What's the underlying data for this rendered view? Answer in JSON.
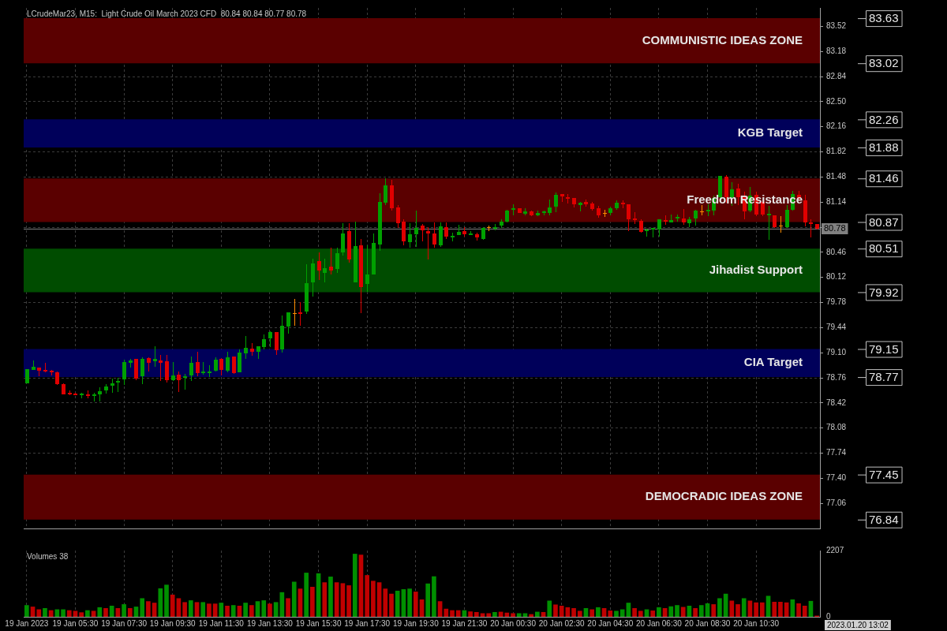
{
  "chart_data": [
    {
      "type": "candlestick",
      "title": "LCrudeMar23, M15:  Light Crude Oil March 2023 CFD  80.84 80.84 80.77 80.78",
      "categories": [
        null,
        null,
        null,
        null,
        null,
        null,
        null,
        null,
        null,
        null,
        null,
        null,
        null,
        null,
        null,
        null,
        null,
        null,
        null,
        null,
        null,
        null,
        null,
        null,
        null,
        null,
        null,
        null,
        null,
        null,
        null,
        null,
        null,
        null,
        null,
        null,
        null,
        null,
        null,
        null,
        null,
        null,
        null,
        null,
        null,
        null,
        null,
        null,
        null,
        null,
        null,
        null,
        null,
        null,
        null,
        null,
        null,
        null,
        null,
        null,
        null,
        null,
        null,
        null,
        null,
        null,
        null,
        null,
        null,
        null,
        null,
        null,
        null,
        null,
        null,
        null,
        null,
        null,
        null,
        null,
        null,
        null,
        null,
        null,
        null,
        null,
        null,
        null,
        null,
        null,
        null,
        null,
        null,
        null,
        null,
        null,
        null,
        null,
        null,
        null,
        null,
        null,
        null,
        null,
        null,
        null,
        null,
        null,
        null,
        null,
        null,
        null,
        null,
        null,
        null,
        null,
        null,
        null,
        null,
        null,
        null,
        null,
        null,
        null,
        null,
        null,
        null,
        null,
        null,
        null,
        null
      ],
      "ohlc": [
        [
          78.69,
          78.88,
          78.69,
          78.88
        ],
        [
          78.87,
          79.0,
          78.87,
          78.91
        ],
        [
          78.9,
          78.9,
          78.78,
          78.86
        ],
        [
          78.86,
          78.96,
          78.83,
          78.85
        ],
        [
          78.86,
          78.87,
          78.79,
          78.84
        ],
        [
          78.84,
          78.85,
          78.66,
          78.68
        ],
        [
          78.67,
          78.69,
          78.54,
          78.54
        ],
        [
          78.55,
          78.59,
          78.53,
          78.54
        ],
        [
          78.55,
          78.56,
          78.52,
          78.52
        ],
        [
          78.52,
          78.56,
          78.48,
          78.55
        ],
        [
          78.54,
          78.59,
          78.48,
          78.51
        ],
        [
          78.51,
          78.56,
          78.44,
          78.54
        ],
        [
          78.54,
          78.63,
          78.44,
          78.58
        ],
        [
          78.59,
          78.68,
          78.55,
          78.64
        ],
        [
          78.65,
          78.75,
          78.56,
          78.69
        ],
        [
          78.7,
          78.76,
          78.57,
          78.71
        ],
        [
          78.74,
          79.01,
          78.66,
          78.97
        ],
        [
          78.96,
          79.02,
          78.9,
          79.0
        ],
        [
          79.02,
          79.02,
          78.73,
          78.75
        ],
        [
          78.78,
          79.04,
          78.68,
          79.02
        ],
        [
          79.03,
          79.04,
          78.85,
          78.96
        ],
        [
          78.98,
          79.19,
          78.91,
          79.02
        ],
        [
          79.0,
          79.07,
          78.72,
          78.96
        ],
        [
          78.98,
          79.07,
          78.7,
          78.73
        ],
        [
          78.73,
          78.97,
          78.72,
          78.79
        ],
        [
          78.8,
          78.85,
          78.57,
          78.73
        ],
        [
          78.77,
          78.81,
          78.6,
          78.78
        ],
        [
          78.79,
          79.05,
          78.72,
          78.96
        ],
        [
          78.97,
          79.11,
          78.78,
          78.82
        ],
        [
          78.83,
          78.97,
          78.8,
          78.84
        ],
        [
          78.82,
          78.93,
          78.77,
          78.85
        ],
        [
          78.86,
          79.04,
          78.85,
          79.01
        ],
        [
          79.02,
          79.03,
          78.79,
          78.87
        ],
        [
          78.86,
          79.11,
          78.84,
          79.04
        ],
        [
          79.05,
          79.05,
          78.81,
          78.82
        ],
        [
          78.83,
          79.14,
          78.83,
          79.1
        ],
        [
          79.09,
          79.33,
          79.02,
          79.17
        ],
        [
          79.16,
          79.23,
          79.06,
          79.11
        ],
        [
          79.11,
          79.19,
          79.02,
          79.19
        ],
        [
          79.18,
          79.35,
          79.14,
          79.28
        ],
        [
          79.29,
          79.39,
          79.18,
          79.38
        ],
        [
          79.38,
          79.38,
          79.07,
          79.13
        ],
        [
          79.14,
          79.6,
          79.1,
          79.46
        ],
        [
          79.45,
          79.65,
          79.36,
          79.65
        ],
        [
          79.63,
          79.83,
          79.46,
          79.63
        ],
        [
          79.64,
          79.79,
          79.46,
          79.63
        ],
        [
          79.66,
          80.3,
          79.63,
          80.04
        ],
        [
          80.05,
          80.37,
          79.86,
          80.31
        ],
        [
          80.34,
          80.46,
          80.09,
          80.21
        ],
        [
          80.18,
          80.37,
          80.05,
          80.25
        ],
        [
          80.27,
          80.52,
          80.16,
          80.21
        ],
        [
          80.23,
          80.52,
          80.18,
          80.45
        ],
        [
          80.46,
          80.85,
          80.42,
          80.72
        ],
        [
          80.75,
          80.85,
          80.32,
          80.36
        ],
        [
          80.05,
          80.87,
          80.05,
          80.54
        ],
        [
          80.55,
          80.64,
          79.64,
          79.99
        ],
        [
          80.03,
          80.55,
          79.92,
          80.16
        ],
        [
          80.16,
          80.71,
          80.16,
          80.59
        ],
        [
          80.57,
          81.26,
          80.48,
          81.14
        ],
        [
          81.13,
          81.46,
          81.1,
          81.37
        ],
        [
          81.37,
          81.44,
          81.02,
          81.06
        ],
        [
          81.07,
          81.1,
          80.79,
          80.85
        ],
        [
          80.87,
          80.91,
          80.56,
          80.61
        ],
        [
          80.6,
          80.85,
          80.52,
          80.7
        ],
        [
          80.7,
          81.02,
          80.53,
          80.79
        ],
        [
          80.82,
          80.84,
          80.61,
          80.76
        ],
        [
          80.75,
          80.8,
          80.36,
          80.71
        ],
        [
          80.72,
          80.86,
          80.52,
          80.57
        ],
        [
          80.56,
          80.86,
          80.53,
          80.81
        ],
        [
          80.8,
          80.86,
          80.64,
          80.67
        ],
        [
          80.66,
          80.73,
          80.61,
          80.68
        ],
        [
          80.69,
          80.83,
          80.69,
          80.74
        ],
        [
          80.75,
          80.8,
          80.67,
          80.7
        ],
        [
          80.69,
          80.75,
          80.69,
          80.71
        ],
        [
          80.7,
          80.73,
          80.62,
          80.66
        ],
        [
          80.64,
          80.8,
          80.63,
          80.79
        ],
        [
          80.79,
          80.82,
          80.75,
          80.79
        ],
        [
          80.78,
          80.84,
          80.76,
          80.8
        ],
        [
          80.82,
          80.91,
          80.79,
          80.88
        ],
        [
          80.87,
          81.04,
          80.86,
          81.03
        ],
        [
          81.04,
          81.11,
          80.96,
          81.05
        ],
        [
          81.06,
          81.06,
          80.99,
          80.99
        ],
        [
          80.98,
          81.06,
          80.96,
          81.01
        ],
        [
          81.01,
          81.02,
          80.95,
          80.96
        ],
        [
          80.96,
          81.02,
          80.95,
          80.99
        ],
        [
          81.0,
          81.02,
          80.96,
          81.01
        ],
        [
          80.99,
          81.17,
          80.96,
          81.07
        ],
        [
          81.08,
          81.27,
          81.0,
          81.24
        ],
        [
          81.25,
          81.25,
          81.14,
          81.22
        ],
        [
          81.21,
          81.25,
          81.12,
          81.19
        ],
        [
          81.2,
          81.2,
          81.07,
          81.11
        ],
        [
          81.1,
          81.14,
          81.01,
          81.13
        ],
        [
          81.14,
          81.17,
          81.08,
          81.11
        ],
        [
          81.12,
          81.14,
          81.03,
          81.05
        ],
        [
          81.06,
          81.09,
          80.93,
          80.96
        ],
        [
          80.99,
          81.04,
          80.94,
          80.99
        ],
        [
          80.99,
          81.08,
          80.96,
          81.06
        ],
        [
          81.06,
          81.16,
          81.04,
          81.13
        ],
        [
          81.13,
          81.16,
          81.06,
          81.11
        ],
        [
          81.11,
          81.11,
          80.75,
          80.91
        ],
        [
          80.92,
          81.0,
          80.84,
          80.9
        ],
        [
          80.89,
          80.91,
          80.73,
          80.74
        ],
        [
          80.75,
          80.78,
          80.67,
          80.76
        ],
        [
          80.77,
          80.79,
          80.66,
          80.78
        ],
        [
          80.77,
          80.91,
          80.67,
          80.91
        ],
        [
          80.9,
          80.96,
          80.83,
          80.87
        ],
        [
          80.86,
          80.97,
          80.86,
          80.9
        ],
        [
          80.92,
          80.97,
          80.88,
          80.93
        ],
        [
          80.92,
          81.05,
          80.83,
          80.86
        ],
        [
          80.85,
          80.94,
          80.8,
          80.91
        ],
        [
          80.92,
          81.04,
          80.82,
          81.02
        ],
        [
          81.01,
          81.1,
          80.96,
          81.01
        ],
        [
          81.02,
          81.11,
          80.95,
          81.03
        ],
        [
          81.03,
          81.23,
          80.96,
          81.2
        ],
        [
          81.21,
          81.5,
          81.17,
          81.49
        ],
        [
          81.48,
          81.51,
          81.13,
          81.21
        ],
        [
          81.21,
          81.41,
          81.09,
          81.31
        ],
        [
          81.32,
          81.39,
          81.1,
          81.21
        ],
        [
          81.22,
          81.28,
          80.91,
          81.01
        ],
        [
          81.02,
          81.34,
          81.0,
          81.23
        ],
        [
          81.24,
          81.28,
          80.95,
          80.97
        ],
        [
          81.14,
          81.16,
          80.95,
          80.97
        ],
        [
          80.97,
          81.09,
          80.63,
          80.98
        ],
        [
          80.96,
          80.96,
          80.79,
          80.8
        ],
        [
          80.82,
          80.95,
          80.73,
          80.82
        ],
        [
          80.8,
          81.1,
          80.79,
          81.04
        ],
        [
          81.04,
          81.29,
          81.02,
          81.25
        ],
        [
          81.24,
          81.29,
          81.16,
          81.18
        ],
        [
          81.16,
          81.24,
          80.81,
          80.86
        ],
        [
          80.86,
          80.91,
          80.66,
          80.84
        ],
        [
          80.84,
          80.84,
          80.77,
          80.78
        ]
      ],
      "colors": [
        "#00a000",
        "#00a000",
        "#e00000",
        "#e00000",
        "#e00000",
        "#e00000",
        "#e00000",
        "#e00000",
        "#e00000",
        "#00a000",
        "#e00000",
        "#00a000",
        "#00a000",
        "#00a000",
        "#00a000",
        "#00a000",
        "#00a000",
        "#00a000",
        "#e00000",
        "#00a000",
        "#e00000",
        "#00a000",
        "#e00000",
        "#e00000",
        "#00a000",
        "#e00000",
        "#00a000",
        "#00a000",
        "#e00000",
        "#00a000",
        "#00a000",
        "#00a000",
        "#e00000",
        "#00a000",
        "#e00000",
        "#00a000",
        "#00a000",
        "#e00000",
        "#00a000",
        "#00a000",
        "#00a000",
        "#e00000",
        "#00a000",
        "#00a000",
        "#ff8c00",
        "#e00000",
        "#00a000",
        "#00a000",
        "#e00000",
        "#00a000",
        "#e00000",
        "#00a000",
        "#00a000",
        "#e00000",
        "#00a000",
        "#e00000",
        "#00a000",
        "#00a000",
        "#00a000",
        "#00a000",
        "#e00000",
        "#e00000",
        "#e00000",
        "#00a000",
        "#00a000",
        "#e00000",
        "#e00000",
        "#e00000",
        "#00a000",
        "#e00000",
        "#00a000",
        "#00a000",
        "#e00000",
        "#00a000",
        "#e00000",
        "#00a000",
        "#ff8c00",
        "#00a000",
        "#00a000",
        "#00a000",
        "#00a000",
        "#e00000",
        "#00a000",
        "#e00000",
        "#00a000",
        "#00a000",
        "#00a000",
        "#00a000",
        "#e00000",
        "#e00000",
        "#e00000",
        "#00a000",
        "#e00000",
        "#e00000",
        "#e00000",
        "#ff8c00",
        "#00a000",
        "#00a000",
        "#e00000",
        "#e00000",
        "#e00000",
        "#e00000",
        "#00a000",
        "#00a000",
        "#00a000",
        "#e00000",
        "#00a000",
        "#00a000",
        "#e00000",
        "#00a000",
        "#00a000",
        "#ff8c00",
        "#00a000",
        "#00a000",
        "#00a000",
        "#e00000",
        "#00a000",
        "#e00000",
        "#e00000",
        "#00a000",
        "#e00000",
        "#e00000",
        "#00a000",
        "#e00000",
        "#ff8c00",
        "#00a000",
        "#00a000",
        "#e00000",
        "#e00000",
        "#e00000",
        "#e00000"
      ],
      "ylim": [
        76.72,
        83.77
      ],
      "yticks": [
        77.06,
        {
          "value": 77.4,
          "label": "77.40"
        },
        77.74,
        78.08,
        78.42,
        78.76,
        {
          "value": 79.1,
          "label": "79.10"
        },
        79.44,
        79.78,
        80.12,
        80.46,
        {
          "value": 80.8,
          "label": null
        },
        81.14,
        81.48,
        81.82,
        82.16,
        {
          "value": 82.5,
          "label": "82.50"
        },
        82.84,
        83.18,
        83.52
      ],
      "grid": true,
      "bands": [
        {
          "axis": "y",
          "from": 83.02,
          "to": 83.63,
          "label": "COMMUNISTIC IDEAS ZONE",
          "color": "#5a0000"
        },
        {
          "axis": "y",
          "from": 81.88,
          "to": 82.26,
          "label": "KGB Target",
          "color": "#00005a"
        },
        {
          "axis": "y",
          "from": 80.87,
          "to": 81.46,
          "label": "Freedom Resistance",
          "color": "#5a0000"
        },
        {
          "axis": "y",
          "from": 79.92,
          "to": 80.51,
          "label": "Jihadist Support",
          "color": "#004c00"
        },
        {
          "axis": "y",
          "from": 78.77,
          "to": 79.15,
          "label": "CIA Target",
          "color": "#00005a"
        },
        {
          "axis": "y",
          "from": 76.84,
          "to": 77.45,
          "label": "DEMOCRADIC IDEAS ZONE",
          "color": "#5a0000"
        }
      ],
      "ref_lines": [
        {
          "axis": "y",
          "value": 80.78,
          "label": "80.78",
          "color": "#808080"
        }
      ],
      "annotations": [
        "83.63",
        "83.02",
        "82.26",
        "81.88",
        "81.46",
        "80.87",
        "80.51",
        "79.92",
        "79.15",
        "78.77",
        "77.45",
        "76.84"
      ]
    },
    {
      "type": "bar",
      "title": "Volumes 38",
      "categories": [
        "19 Jan 2023",
        null,
        null,
        null,
        null,
        null,
        null,
        null,
        "19 Jan 05:30",
        null,
        null,
        null,
        null,
        null,
        null,
        null,
        "19 Jan 07:30",
        null,
        null,
        null,
        null,
        null,
        null,
        null,
        "19 Jan 09:30",
        null,
        null,
        null,
        null,
        null,
        null,
        null,
        "19 Jan 11:30",
        null,
        null,
        null,
        null,
        null,
        null,
        null,
        "19 Jan 13:30",
        null,
        null,
        null,
        null,
        null,
        null,
        null,
        "19 Jan 15:30",
        null,
        null,
        null,
        null,
        null,
        null,
        null,
        "19 Jan 17:30",
        null,
        null,
        null,
        null,
        null,
        null,
        null,
        "19 Jan 19:30",
        null,
        null,
        null,
        null,
        null,
        null,
        null,
        "19 Jan 21:30",
        null,
        null,
        null,
        null,
        null,
        null,
        null,
        "20 Jan 00:30",
        null,
        null,
        null,
        null,
        null,
        null,
        null,
        "20 Jan 02:30",
        null,
        null,
        null,
        null,
        null,
        null,
        null,
        "20 Jan 04:30",
        null,
        null,
        null,
        null,
        null,
        null,
        null,
        "20 Jan 06:30",
        null,
        null,
        null,
        null,
        null,
        null,
        null,
        "20 Jan 08:30",
        null,
        null,
        null,
        null,
        null,
        null,
        null,
        "20 Jan 10:30",
        null,
        null,
        null,
        null,
        null,
        null,
        null,
        null,
        null,
        null
      ],
      "values": [
        380,
        330,
        240,
        280,
        210,
        240,
        240,
        210,
        190,
        140,
        210,
        190,
        310,
        280,
        360,
        280,
        410,
        280,
        330,
        610,
        510,
        460,
        940,
        1060,
        730,
        610,
        480,
        540,
        480,
        480,
        430,
        430,
        460,
        360,
        380,
        360,
        460,
        380,
        510,
        540,
        430,
        480,
        810,
        610,
        1160,
        930,
        1460,
        990,
        1440,
        1140,
        1330,
        1140,
        1110,
        1040,
        2090,
        2060,
        1380,
        1190,
        1140,
        930,
        760,
        860,
        910,
        930,
        830,
        570,
        1100,
        1340,
        510,
        260,
        210,
        210,
        210,
        170,
        150,
        110,
        110,
        150,
        160,
        130,
        110,
        110,
        110,
        80,
        160,
        150,
        530,
        400,
        360,
        310,
        280,
        190,
        280,
        240,
        310,
        280,
        200,
        190,
        240,
        460,
        280,
        190,
        240,
        200,
        310,
        280,
        340,
        380,
        320,
        360,
        280,
        380,
        440,
        410,
        610,
        760,
        530,
        410,
        610,
        530,
        470,
        470,
        690,
        490,
        490,
        470,
        570,
        440,
        360,
        520,
        30
      ],
      "colors": [
        "#009000",
        "#c00000",
        "#c00000",
        "#009000",
        "#c00000",
        "#009000",
        "#009000",
        "#c00000",
        "#c00000",
        "#c00000",
        "#009000",
        "#c00000",
        "#009000",
        "#c00000",
        "#009000",
        "#c00000",
        "#009000",
        "#c00000",
        "#009000",
        "#009000",
        "#c00000",
        "#c00000",
        "#009000",
        "#009000",
        "#c00000",
        "#c00000",
        "#c00000",
        "#009000",
        "#c00000",
        "#009000",
        "#c00000",
        "#c00000",
        "#009000",
        "#c00000",
        "#009000",
        "#c00000",
        "#009000",
        "#c00000",
        "#009000",
        "#009000",
        "#c00000",
        "#009000",
        "#009000",
        "#c00000",
        "#009000",
        "#c00000",
        "#009000",
        "#c00000",
        "#009000",
        "#c00000",
        "#009000",
        "#c00000",
        "#c00000",
        "#c00000",
        "#009000",
        "#c00000",
        "#c00000",
        "#c00000",
        "#c00000",
        "#c00000",
        "#c00000",
        "#009000",
        "#009000",
        "#009000",
        "#c00000",
        "#c00000",
        "#009000",
        "#009000",
        "#c00000",
        "#c00000",
        "#c00000",
        "#c00000",
        "#009000",
        "#c00000",
        "#c00000",
        "#c00000",
        "#c00000",
        "#009000",
        "#c00000",
        "#c00000",
        "#c00000",
        "#009000",
        "#009000",
        "#c00000",
        "#009000",
        "#c00000",
        "#009000",
        "#c00000",
        "#c00000",
        "#c00000",
        "#c00000",
        "#c00000",
        "#009000",
        "#c00000",
        "#009000",
        "#c00000",
        "#c00000",
        "#009000",
        "#009000",
        "#009000",
        "#c00000",
        "#c00000",
        "#009000",
        "#c00000",
        "#009000",
        "#c00000",
        "#009000",
        "#009000",
        "#c00000",
        "#009000",
        "#c00000",
        "#009000",
        "#009000",
        "#c00000",
        "#009000",
        "#009000",
        "#c00000",
        "#c00000",
        "#009000",
        "#c00000",
        "#c00000",
        "#c00000",
        "#009000",
        "#c00000",
        "#c00000",
        "#c00000",
        "#009000",
        "#c00000",
        "#c00000",
        "#009000",
        "#c00000"
      ],
      "ylim": [
        0,
        2207
      ],
      "yticks": [
        0,
        2207
      ],
      "grid": "x",
      "annotations": [
        "2023.01.20 13:02"
      ]
    }
  ]
}
